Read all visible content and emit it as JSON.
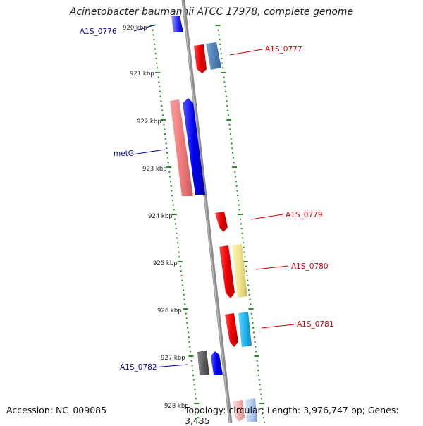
{
  "title": "Acinetobacter baumannii ATCC 17978, complete genome",
  "accession": "Accession: NC_009085",
  "topology": "Topology: circular; Length: 3,976,747 bp; Genes: 3,435",
  "axis_labels": [
    "920 kbp",
    "921 kbp",
    "922 kbp",
    "923 kbp",
    "924 kbp",
    "925 kbp",
    "926 kbp",
    "927 kbp",
    "928 kbp"
  ],
  "gene_labels": {
    "a1s_0776": "A1S_0776",
    "a1s_0777": "A1S_0777",
    "metG": "metG",
    "a1s_0779": "A1S_0779",
    "a1s_0780": "A1S_0780",
    "a1s_0781": "A1S_0781",
    "a1s_0782": "A1S_0782"
  },
  "colors": {
    "forward_label": "#cc0000",
    "reverse_label": "#000099",
    "backbone": "#888888",
    "ticks": "#228B22"
  }
}
